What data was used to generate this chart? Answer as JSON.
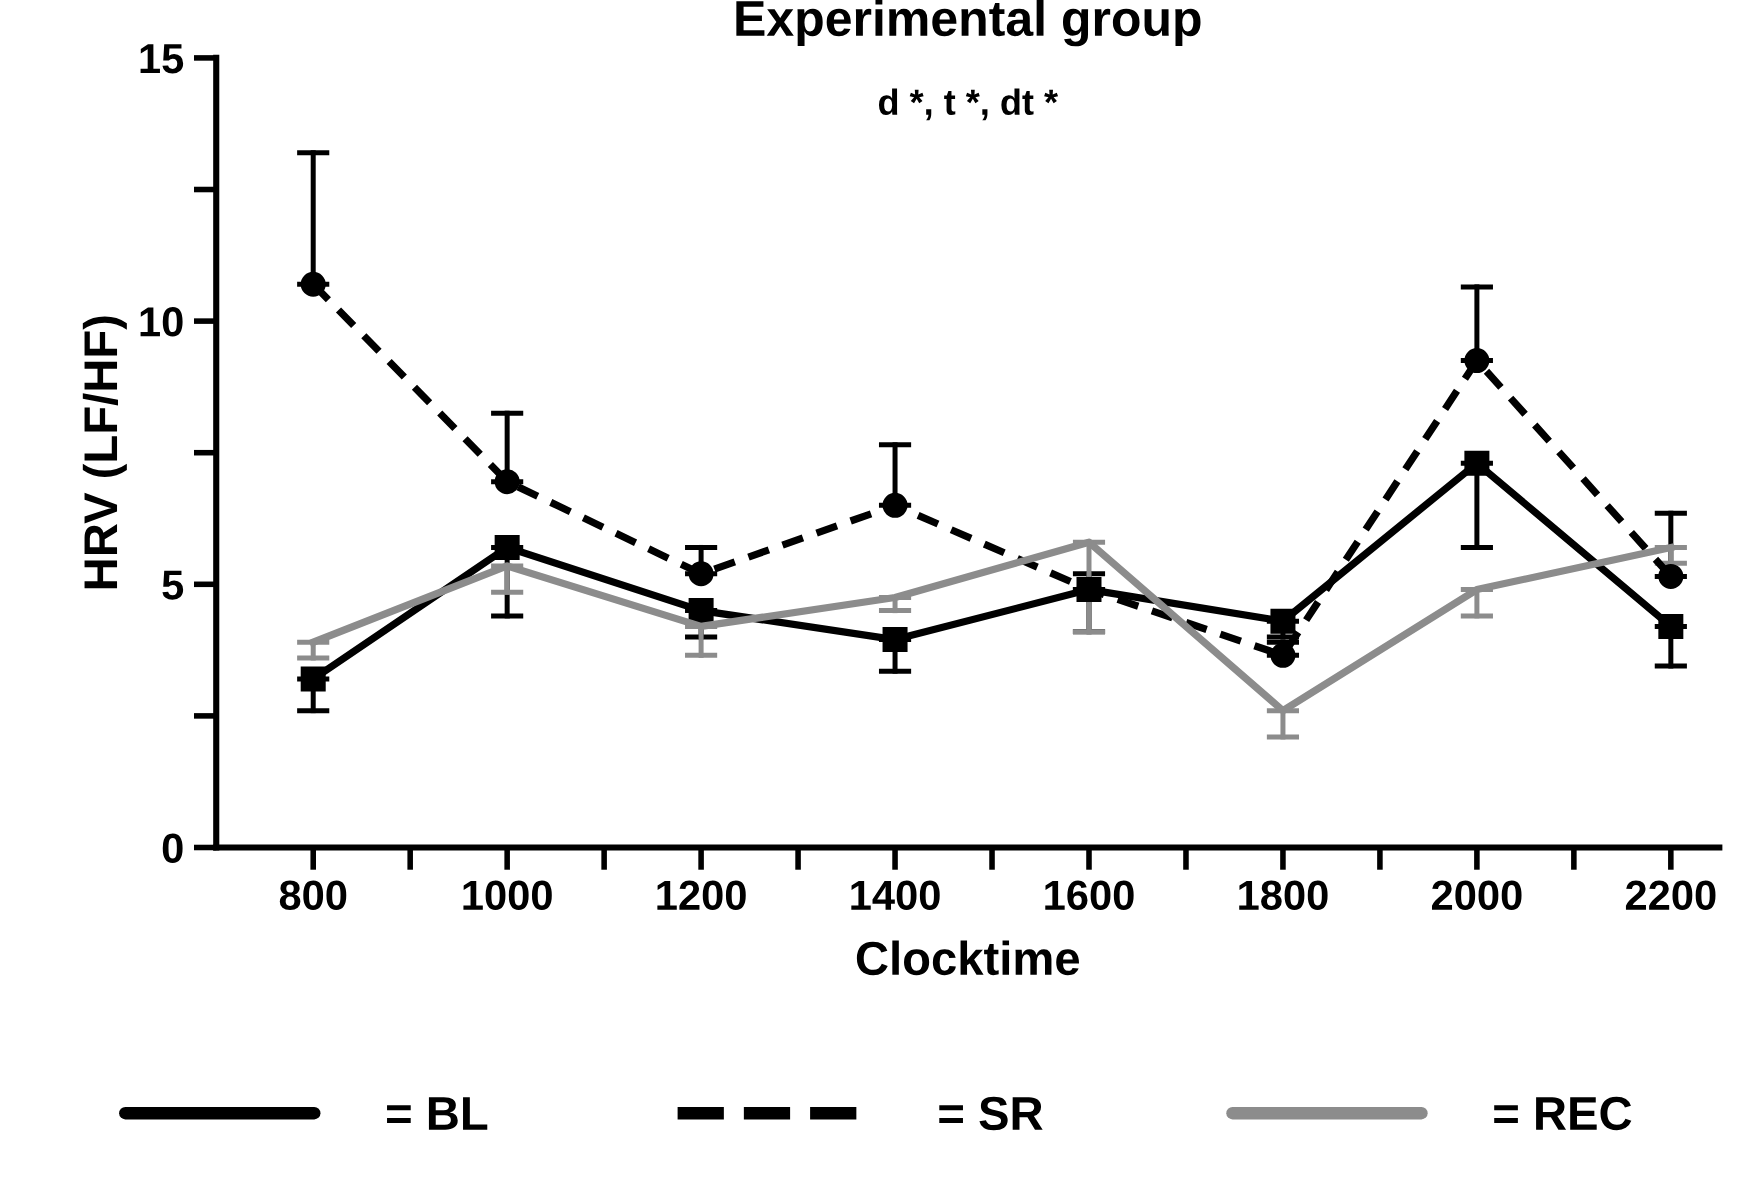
{
  "chart_data": {
    "type": "line",
    "title": "Experimental group",
    "subtitle": "d *, t *, dt *",
    "xlabel": "Clocktime",
    "ylabel": "HRV (LF/HF)",
    "x": [
      800,
      1000,
      1200,
      1400,
      1600,
      1800,
      2000,
      2200
    ],
    "xlim": [
      700,
      2250
    ],
    "xticks": [
      800,
      {
        "value": 900,
        "label": null
      },
      1000,
      {
        "value": 1100,
        "label": null
      },
      1200,
      {
        "value": 1300,
        "label": null
      },
      1400,
      {
        "value": 1500,
        "label": null
      },
      1600,
      {
        "value": 1700,
        "label": null
      },
      1800,
      {
        "value": 1900,
        "label": null
      },
      2000,
      {
        "value": 2100,
        "label": null
      },
      2200
    ],
    "ylim": [
      0,
      15
    ],
    "yticks": [
      0,
      {
        "value": 2.5,
        "label": null
      },
      5,
      {
        "value": 7.5,
        "label": null
      },
      10,
      {
        "value": 12.5,
        "label": null
      },
      15
    ],
    "grid": false,
    "legend": "bottom",
    "series": [
      {
        "name": "= BL",
        "color": "#000000",
        "marker": "square",
        "line_style": "solid",
        "values": [
          3.2,
          5.7,
          4.5,
          3.95,
          4.9,
          4.3,
          7.3,
          4.2
        ],
        "errors": [
          [
            2.6,
            3.2
          ],
          [
            4.4,
            5.7
          ],
          [
            4.0,
            4.5
          ],
          [
            3.35,
            3.95
          ],
          [
            4.1,
            4.9
          ],
          [
            4.0,
            4.3
          ],
          [
            5.7,
            7.3
          ],
          [
            3.45,
            4.2
          ]
        ]
      },
      {
        "name": "= SR",
        "color": "#000000",
        "marker": "circle",
        "line_style": "dashed",
        "values": [
          10.7,
          6.95,
          5.2,
          6.5,
          4.9,
          3.65,
          9.25,
          5.15
        ],
        "errors": [
          [
            10.7,
            13.2
          ],
          [
            6.95,
            8.25
          ],
          [
            5.2,
            5.7
          ],
          [
            6.5,
            7.65
          ],
          [
            4.9,
            5.2
          ],
          [
            3.65,
            3.9
          ],
          [
            9.25,
            10.65
          ],
          [
            5.15,
            6.35
          ]
        ]
      },
      {
        "name": "= REC",
        "color": "#8c8c8c",
        "marker": "none",
        "line_style": "solid",
        "values": [
          3.9,
          5.35,
          4.2,
          4.75,
          5.8,
          2.6,
          4.9,
          5.7
        ],
        "errors": [
          [
            3.6,
            3.9
          ],
          [
            4.85,
            5.35
          ],
          [
            3.65,
            4.2
          ],
          [
            4.5,
            4.75
          ],
          [
            4.1,
            5.8
          ],
          [
            2.1,
            2.6
          ],
          [
            4.4,
            4.9
          ],
          [
            5.4,
            5.7
          ]
        ]
      }
    ]
  }
}
